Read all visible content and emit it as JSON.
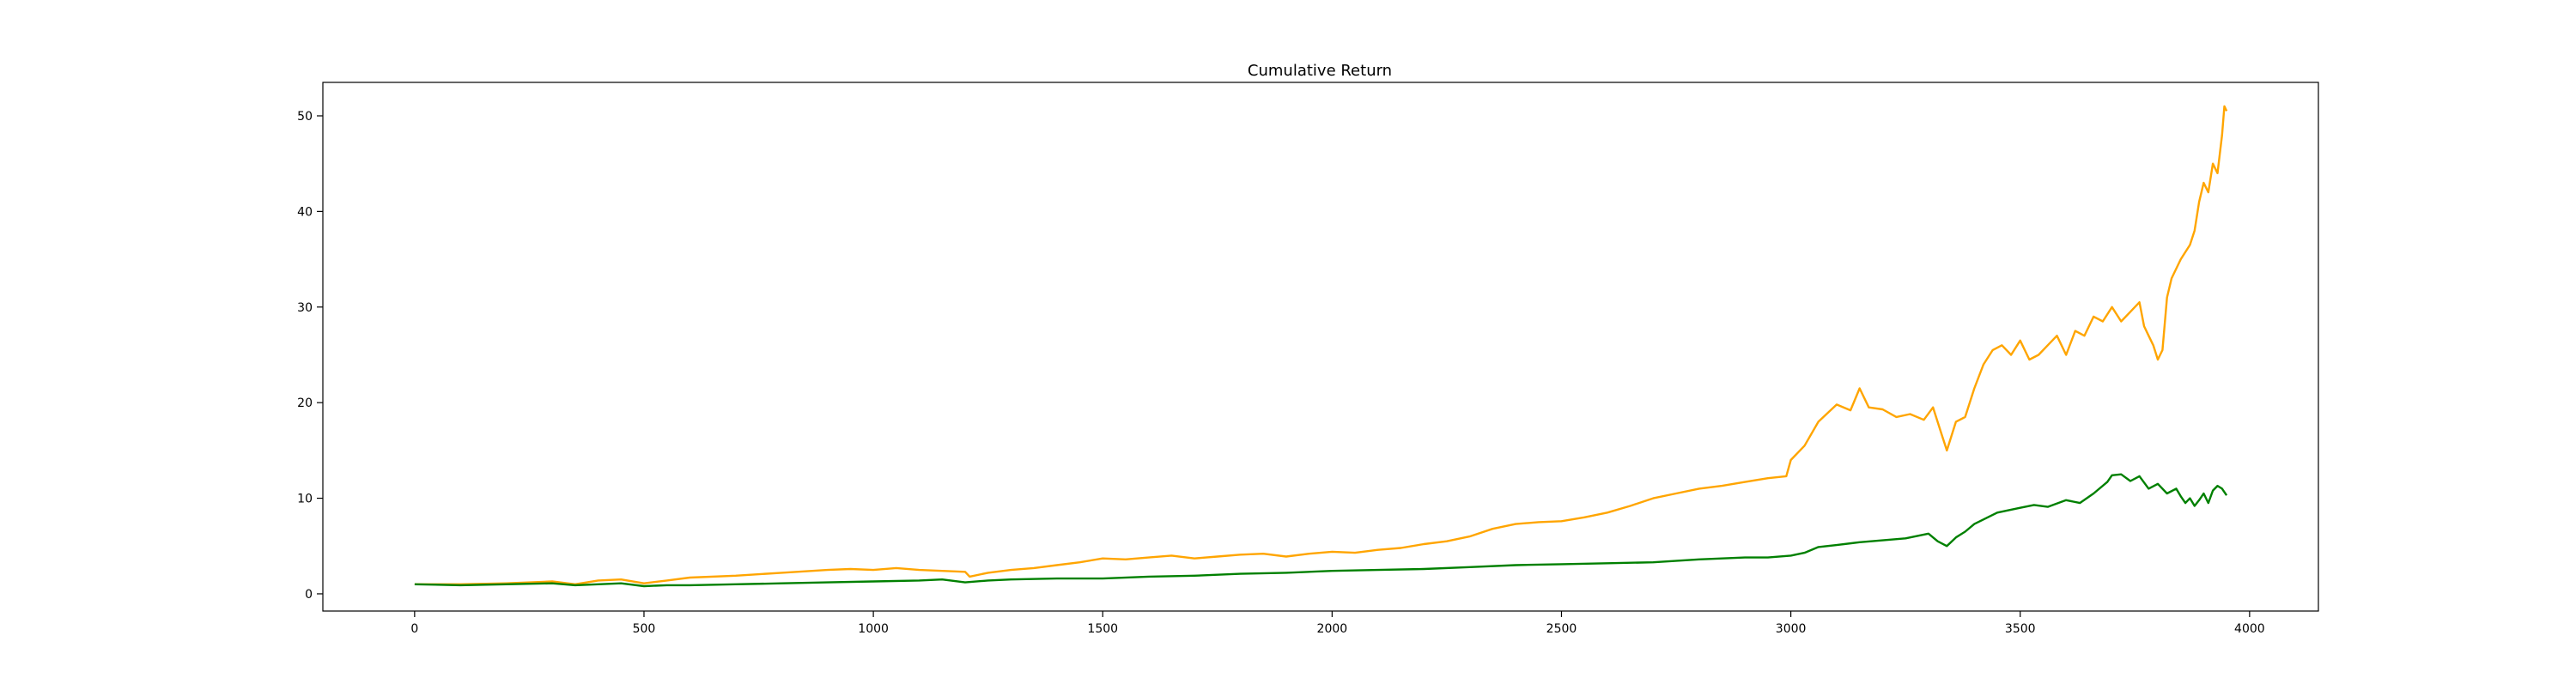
{
  "chart_data": {
    "type": "line",
    "title": "Cumulative Return",
    "xlabel": "",
    "ylabel": "",
    "xlim": [
      -200,
      4150
    ],
    "ylim": [
      -1.8,
      53.5
    ],
    "xticks": [
      0,
      500,
      1000,
      1500,
      2000,
      2500,
      3000,
      3500,
      4000
    ],
    "xtick_labels": [
      "0",
      "500",
      "1000",
      "1500",
      "2000",
      "2500",
      "3000",
      "3500",
      "4000"
    ],
    "yticks": [
      0,
      10,
      20,
      30,
      40,
      50
    ],
    "ytick_labels": [
      "0",
      "10",
      "20",
      "30",
      "40",
      "50"
    ],
    "grid": false,
    "legend": "none",
    "series": [
      {
        "color": "#ffa500",
        "x": [
          0,
          100,
          200,
          300,
          350,
          400,
          450,
          500,
          550,
          600,
          700,
          800,
          900,
          950,
          1000,
          1050,
          1100,
          1150,
          1200,
          1210,
          1250,
          1300,
          1350,
          1400,
          1450,
          1500,
          1550,
          1600,
          1650,
          1700,
          1750,
          1800,
          1850,
          1900,
          1950,
          2000,
          2050,
          2100,
          2150,
          2200,
          2250,
          2300,
          2350,
          2400,
          2450,
          2500,
          2550,
          2600,
          2650,
          2700,
          2750,
          2800,
          2850,
          2900,
          2950,
          2990,
          3000,
          3030,
          3060,
          3100,
          3130,
          3150,
          3170,
          3200,
          3230,
          3260,
          3290,
          3310,
          3330,
          3340,
          3360,
          3380,
          3400,
          3420,
          3440,
          3460,
          3480,
          3500,
          3520,
          3540,
          3560,
          3580,
          3600,
          3620,
          3640,
          3660,
          3680,
          3700,
          3720,
          3740,
          3760,
          3770,
          3780,
          3790,
          3800,
          3810,
          3820,
          3830,
          3850,
          3870,
          3880,
          3890,
          3900,
          3910,
          3920,
          3930,
          3940,
          3945,
          3950
        ],
        "y": [
          1.0,
          1.0,
          1.1,
          1.3,
          1.0,
          1.4,
          1.5,
          1.1,
          1.4,
          1.7,
          1.9,
          2.2,
          2.5,
          2.6,
          2.5,
          2.7,
          2.5,
          2.4,
          2.3,
          1.8,
          2.2,
          2.5,
          2.7,
          3.0,
          3.3,
          3.7,
          3.6,
          3.8,
          4.0,
          3.7,
          3.9,
          4.1,
          4.2,
          3.9,
          4.2,
          4.4,
          4.3,
          4.6,
          4.8,
          5.2,
          5.5,
          6.0,
          6.8,
          7.3,
          7.5,
          7.6,
          8.0,
          8.5,
          9.2,
          10.0,
          10.5,
          11.0,
          11.3,
          11.7,
          12.1,
          12.3,
          14.0,
          15.5,
          18.0,
          19.8,
          19.2,
          21.5,
          19.5,
          19.3,
          18.5,
          18.8,
          18.2,
          19.5,
          16.5,
          15.0,
          18.0,
          18.5,
          21.5,
          24.0,
          25.5,
          26.0,
          25.0,
          26.5,
          24.5,
          25.0,
          26.0,
          27.0,
          25.0,
          27.5,
          27.0,
          29.0,
          28.5,
          30.0,
          28.5,
          29.5,
          30.5,
          28.0,
          27.0,
          26.0,
          24.5,
          25.5,
          31.0,
          33.0,
          35.0,
          36.5,
          38.0,
          41.0,
          43.0,
          42.0,
          45.0,
          44.0,
          48.0,
          51.0,
          50.5
        ]
      },
      {
        "color": "#008000",
        "x": [
          0,
          100,
          200,
          300,
          350,
          400,
          450,
          500,
          550,
          600,
          700,
          800,
          900,
          1000,
          1100,
          1150,
          1200,
          1250,
          1300,
          1400,
          1500,
          1600,
          1700,
          1800,
          1900,
          2000,
          2100,
          2200,
          2300,
          2400,
          2500,
          2600,
          2700,
          2800,
          2900,
          2950,
          3000,
          3030,
          3060,
          3100,
          3150,
          3200,
          3250,
          3300,
          3320,
          3340,
          3360,
          3380,
          3400,
          3450,
          3500,
          3530,
          3560,
          3600,
          3630,
          3660,
          3690,
          3700,
          3720,
          3740,
          3760,
          3780,
          3800,
          3820,
          3840,
          3850,
          3860,
          3870,
          3880,
          3890,
          3900,
          3910,
          3920,
          3930,
          3940,
          3950
        ],
        "y": [
          1.0,
          0.9,
          1.0,
          1.1,
          0.9,
          1.0,
          1.1,
          0.8,
          0.9,
          0.9,
          1.0,
          1.1,
          1.2,
          1.3,
          1.4,
          1.5,
          1.2,
          1.4,
          1.5,
          1.6,
          1.6,
          1.8,
          1.9,
          2.1,
          2.2,
          2.4,
          2.5,
          2.6,
          2.8,
          3.0,
          3.1,
          3.2,
          3.3,
          3.6,
          3.8,
          3.8,
          4.0,
          4.3,
          4.9,
          5.1,
          5.4,
          5.6,
          5.8,
          6.3,
          5.5,
          5.0,
          5.9,
          6.5,
          7.3,
          8.5,
          9.0,
          9.3,
          9.1,
          9.8,
          9.5,
          10.5,
          11.7,
          12.4,
          12.5,
          11.8,
          12.3,
          11.0,
          11.5,
          10.5,
          11.0,
          10.2,
          9.5,
          10.0,
          9.2,
          9.8,
          10.5,
          9.5,
          10.8,
          11.3,
          11.0,
          10.3
        ]
      }
    ]
  }
}
